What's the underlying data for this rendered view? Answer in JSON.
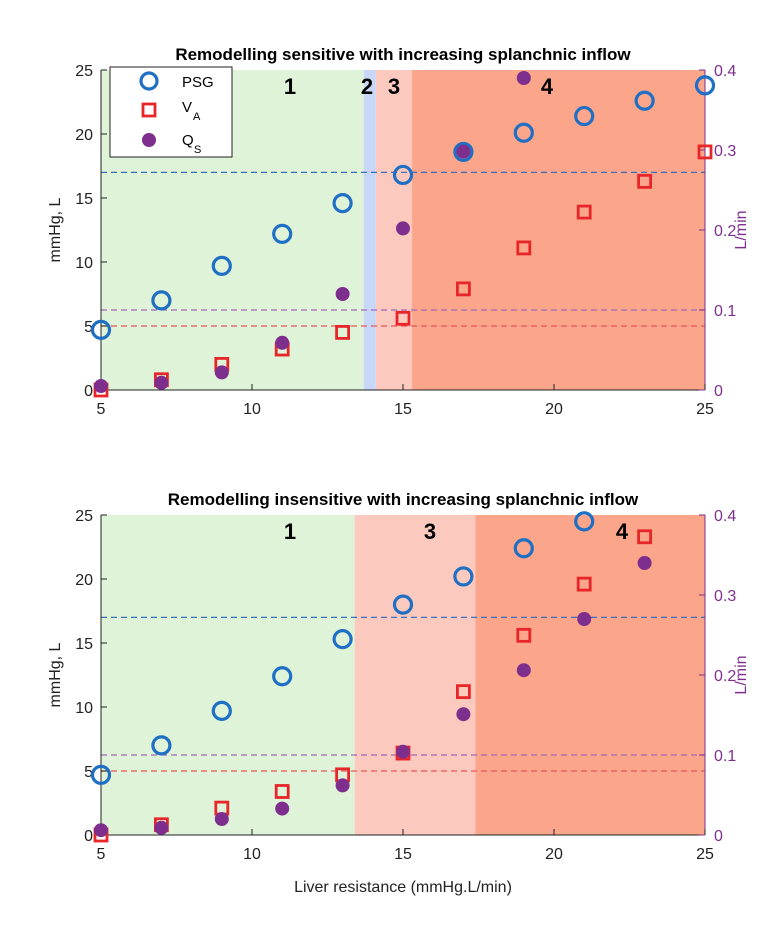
{
  "colors": {
    "psg": "#1f6fc5",
    "va": "#e8262a",
    "qs": "#7E2F8E",
    "region1": "#dff3d8",
    "region2": "#c8d6f7",
    "region3": "#fbc9bd",
    "region4": "#fba58b",
    "ref_blue": "#3a6fc0",
    "ref_red": "#e8555a",
    "ref_purple": "#a069b8",
    "right_axis": "#7E2F8E"
  },
  "legend": {
    "psg": "PSG",
    "va_main": "V",
    "va_sub": "A",
    "qs_main": "Q",
    "qs_sub": "S"
  },
  "chart_data": [
    {
      "type": "scatter",
      "title": "Remodelling sensitive with increasing splanchnic inflow",
      "xlabel": "",
      "ylabel": "mmHg, L",
      "ylabel_right": "L/min",
      "xlim": [
        5,
        25
      ],
      "ylim": [
        0,
        25
      ],
      "ylim_right": [
        0,
        0.4
      ],
      "x_ticks": [
        "5",
        "10",
        "15",
        "20",
        "25"
      ],
      "y_ticks": [
        "0",
        "5",
        "10",
        "15",
        "20",
        "25"
      ],
      "y_ticks_right": [
        "0",
        "0.1",
        "0.2",
        "0.3",
        "0.4"
      ],
      "regions": [
        {
          "label": "1",
          "from": 5,
          "to": 13.7,
          "color_key": "region1"
        },
        {
          "label": "2",
          "from": 13.7,
          "to": 14.1,
          "color_key": "region2"
        },
        {
          "label": "3",
          "from": 14.1,
          "to": 15.3,
          "color_key": "region3"
        },
        {
          "label": "4",
          "from": 15.3,
          "to": 25,
          "color_key": "region4"
        }
      ],
      "reference_lines": [
        {
          "axis": "left",
          "y": 17,
          "color_key": "ref_blue"
        },
        {
          "axis": "left",
          "y": 5,
          "color_key": "ref_red"
        },
        {
          "axis": "right",
          "y": 0.1,
          "color_key": "ref_purple"
        }
      ],
      "series": [
        {
          "name": "PSG",
          "axis": "left",
          "marker": "circle-open",
          "x": [
            5,
            7,
            9,
            11,
            13,
            15,
            17,
            19,
            21,
            23,
            25
          ],
          "y": [
            4.7,
            7.0,
            9.7,
            12.2,
            14.6,
            16.8,
            18.6,
            20.1,
            21.4,
            22.6,
            23.8
          ]
        },
        {
          "name": "VA",
          "axis": "left",
          "marker": "square-open",
          "x": [
            5,
            7,
            9,
            11,
            13,
            15,
            17,
            19,
            21,
            23,
            25
          ],
          "y": [
            0.0,
            0.8,
            2.0,
            3.2,
            4.5,
            5.6,
            7.9,
            11.1,
            13.9,
            16.3,
            18.6
          ]
        },
        {
          "name": "QS",
          "axis": "right",
          "marker": "circle-filled",
          "x": [
            5,
            7,
            9,
            11,
            13,
            15,
            17,
            19
          ],
          "y": [
            0.005,
            0.009,
            0.022,
            0.059,
            0.12,
            0.202,
            0.298,
            0.39
          ]
        }
      ]
    },
    {
      "type": "scatter",
      "title": "Remodelling insensitive with increasing splanchnic inflow",
      "xlabel": "Liver resistance (mmHg.L/min)",
      "ylabel": "mmHg, L",
      "ylabel_right": "L/min",
      "xlim": [
        5,
        25
      ],
      "ylim": [
        0,
        25
      ],
      "ylim_right": [
        0,
        0.4
      ],
      "x_ticks": [
        "5",
        "10",
        "15",
        "20",
        "25"
      ],
      "y_ticks": [
        "0",
        "5",
        "10",
        "15",
        "20",
        "25"
      ],
      "y_ticks_right": [
        "0",
        "0.1",
        "0.2",
        "0.3",
        "0.4"
      ],
      "regions": [
        {
          "label": "1",
          "from": 5,
          "to": 13.4,
          "color_key": "region1"
        },
        {
          "label": "3",
          "from": 13.4,
          "to": 17.4,
          "color_key": "region3"
        },
        {
          "label": "4",
          "from": 17.4,
          "to": 25,
          "color_key": "region4"
        }
      ],
      "reference_lines": [
        {
          "axis": "left",
          "y": 17,
          "color_key": "ref_blue"
        },
        {
          "axis": "left",
          "y": 5,
          "color_key": "ref_red"
        },
        {
          "axis": "right",
          "y": 0.1,
          "color_key": "ref_purple"
        }
      ],
      "series": [
        {
          "name": "PSG",
          "axis": "left",
          "marker": "circle-open",
          "x": [
            5,
            7,
            9,
            11,
            13,
            15,
            17,
            19,
            21
          ],
          "y": [
            4.7,
            7.0,
            9.7,
            12.4,
            15.3,
            18.0,
            20.2,
            22.4,
            24.5
          ]
        },
        {
          "name": "VA",
          "axis": "left",
          "marker": "square-open",
          "x": [
            5,
            7,
            9,
            11,
            13,
            15,
            17,
            19,
            21,
            23
          ],
          "y": [
            0.0,
            0.8,
            2.1,
            3.4,
            4.7,
            6.4,
            11.2,
            15.6,
            19.6,
            23.3
          ]
        },
        {
          "name": "QS",
          "axis": "right",
          "marker": "circle-filled",
          "x": [
            5,
            7,
            9,
            11,
            13,
            15,
            17,
            19,
            21,
            23
          ],
          "y": [
            0.006,
            0.009,
            0.02,
            0.033,
            0.062,
            0.104,
            0.151,
            0.206,
            0.27,
            0.34
          ]
        }
      ]
    }
  ]
}
